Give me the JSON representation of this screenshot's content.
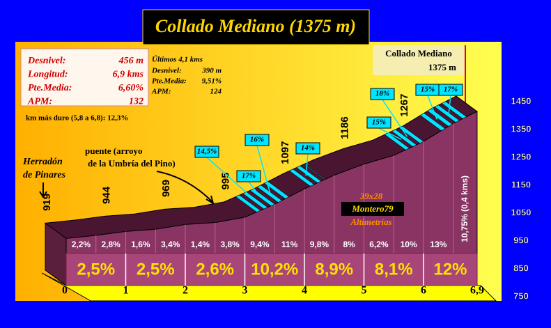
{
  "chart_data": {
    "type": "profile",
    "title": "Collado Mediano (1375 m)",
    "x": [
      0,
      0.5,
      1,
      1.5,
      2,
      2.5,
      3,
      3.5,
      4,
      4.5,
      5,
      5.5,
      6,
      6.5,
      6.9
    ],
    "values": [
      919,
      930,
      944,
      952,
      969,
      976,
      995,
      1042,
      1097,
      1146,
      1186,
      1217,
      1267,
      1332,
      1375
    ],
    "labeled_points": [
      0,
      2,
      4,
      6,
      8,
      10,
      12
    ],
    "ylim": [
      750,
      1450
    ],
    "yticks": [
      750,
      850,
      950,
      1050,
      1150,
      1250,
      1350,
      1450
    ],
    "xticks": [
      0,
      1,
      2,
      3,
      4,
      5,
      6,
      {
        "value": 6.9,
        "label": "6,9"
      }
    ],
    "half_km_grades": [
      "2,2%",
      "2,8%",
      "1,6%",
      "3,4%",
      "1,4%",
      "3,8%",
      "9,4%",
      "11%",
      "9,8%",
      "8%",
      "6,2%",
      "10%",
      "13%",
      "10,75% (0,4 kms)"
    ],
    "km_grades": [
      "2,5%",
      "2,5%",
      "2,6%",
      "10,2%",
      "8,9%",
      "8,1%",
      "12%"
    ],
    "info": [
      {
        "label": "Desnivel:",
        "value": "456 m"
      },
      {
        "label": "Longitud:",
        "value": "6,9 kms"
      },
      {
        "label": "Pte.Media:",
        "value": "6,60%"
      },
      {
        "label": "APM:",
        "value": "132"
      }
    ],
    "last_title": "Últimos 4,1 kms",
    "last": [
      {
        "label": "Desnivel:",
        "value": "390 m"
      },
      {
        "label": "Pte.Media:",
        "value": "9,51%"
      },
      {
        "label": "APM:",
        "value": "124"
      }
    ],
    "hardest": "km más duro (5,8 a 6,8): 12,3%",
    "summit": [
      "Collado Mediano",
      "1375 m"
    ],
    "start": [
      "Herradón",
      "de Pinares"
    ],
    "bridge": [
      "puente (arroyo",
      "de la Umbría del Pino)"
    ],
    "credits": [
      "39x28",
      "Montero79",
      "Altimetrías"
    ],
    "callouts": [
      "14,5%",
      "16%",
      "17%",
      "14%",
      "18%",
      "15%",
      "15%",
      "17%"
    ]
  }
}
